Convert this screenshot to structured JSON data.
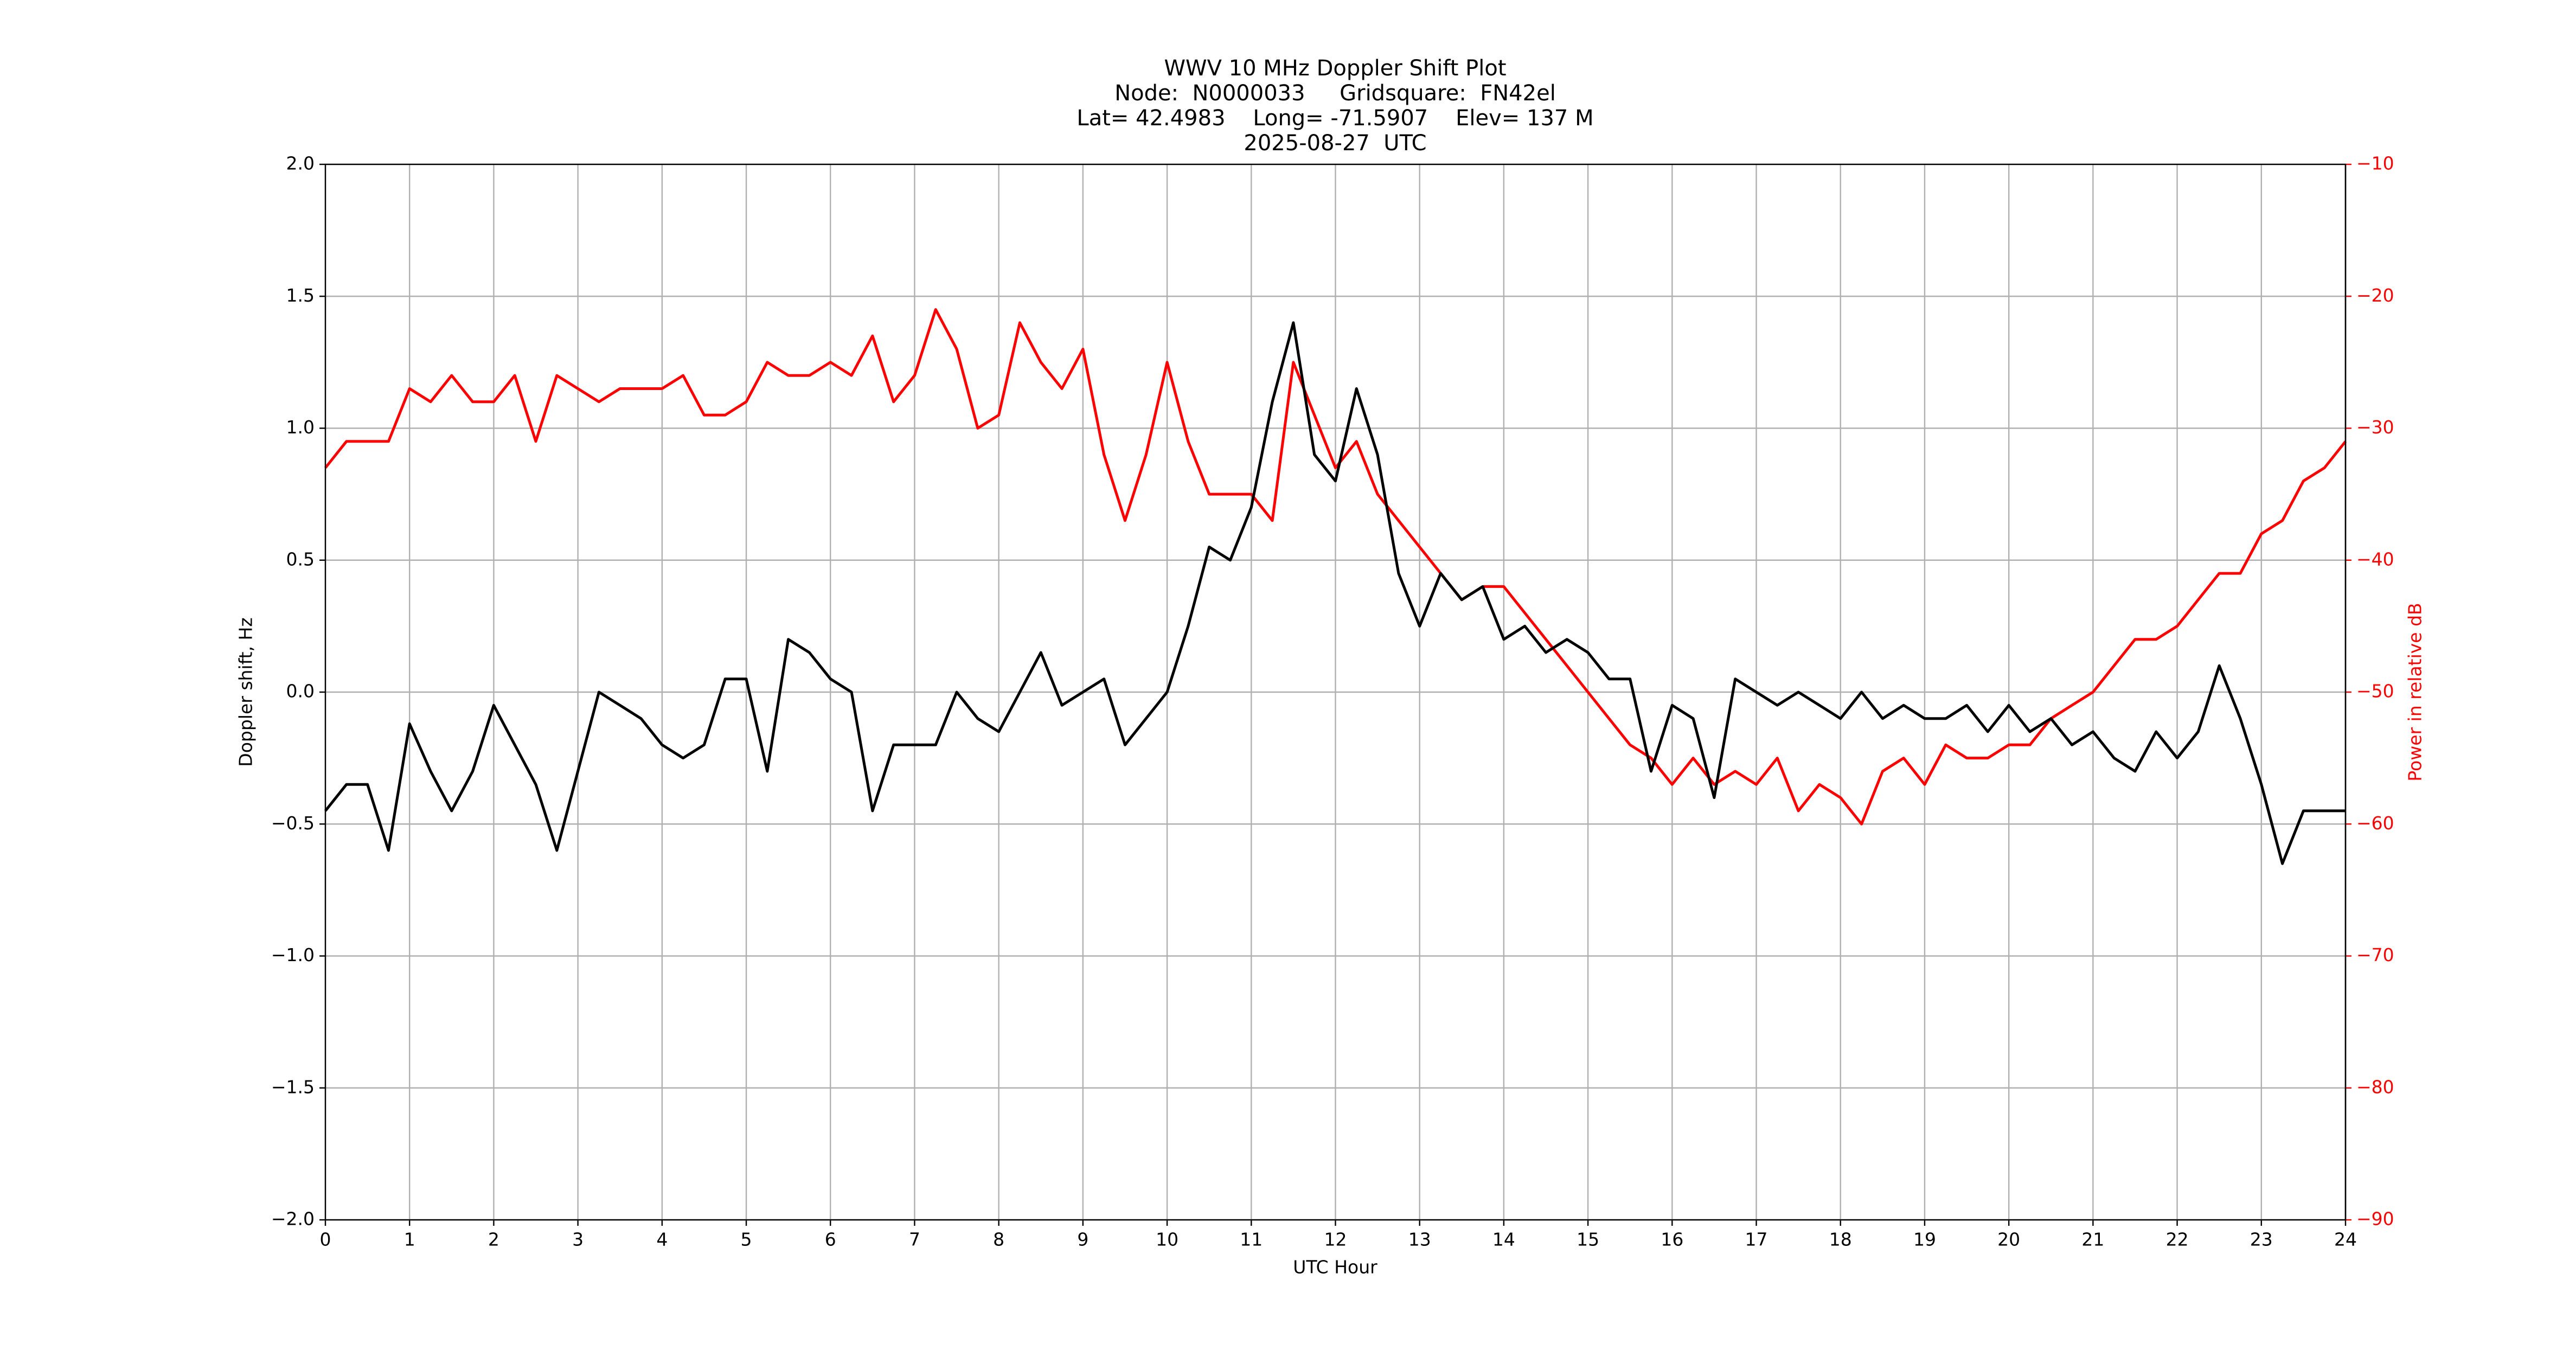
{
  "chart_data": {
    "type": "line",
    "title": "WWV 10 MHz Doppler Shift Plot",
    "subtitle": [
      "Node:  N0000033     Gridsquare:  FN42el",
      "Lat= 42.4983    Long= -71.5907    Elev= 137 M",
      "2025-08-27  UTC"
    ],
    "xlabel": "UTC Hour",
    "ylabel": "Doppler shift, Hz",
    "y2label": "Power in relative dB",
    "x": [
      0,
      0.25,
      0.5,
      0.75,
      1,
      1.25,
      1.5,
      1.75,
      2,
      2.25,
      2.5,
      2.75,
      3,
      3.25,
      3.5,
      3.75,
      4,
      4.25,
      4.5,
      4.75,
      5,
      5.25,
      5.5,
      5.75,
      6,
      6.25,
      6.5,
      6.75,
      7,
      7.25,
      7.5,
      7.75,
      8,
      8.25,
      8.5,
      8.75,
      9,
      9.25,
      9.5,
      9.75,
      10,
      10.25,
      10.5,
      10.75,
      11,
      11.25,
      11.5,
      11.75,
      12,
      12.25,
      12.5,
      12.75,
      13,
      13.25,
      13.5,
      13.75,
      14,
      14.25,
      14.5,
      14.75,
      15,
      15.25,
      15.5,
      15.75,
      16,
      16.25,
      16.5,
      16.75,
      17,
      17.25,
      17.5,
      17.75,
      18,
      18.25,
      18.5,
      18.75,
      19,
      19.25,
      19.5,
      19.75,
      20,
      20.25,
      20.5,
      20.75,
      21,
      21.25,
      21.5,
      21.75,
      22,
      22.25,
      22.5,
      22.75,
      23,
      23.25,
      23.5,
      23.75,
      24
    ],
    "series": [
      {
        "name": "Doppler shift",
        "color": "#000000",
        "axis": "y",
        "values": [
          -0.45,
          -0.35,
          -0.35,
          -0.6,
          -0.12,
          -0.3,
          -0.45,
          -0.3,
          -0.05,
          -0.2,
          -0.35,
          -0.6,
          -0.3,
          0.0,
          -0.05,
          -0.1,
          -0.2,
          -0.25,
          -0.2,
          0.05,
          0.05,
          -0.3,
          0.2,
          0.15,
          0.05,
          0.0,
          -0.45,
          -0.2,
          -0.2,
          -0.2,
          0.0,
          -0.1,
          -0.15,
          0.0,
          0.15,
          -0.05,
          0.0,
          0.05,
          -0.2,
          -0.1,
          0.0,
          0.25,
          0.55,
          0.5,
          0.7,
          1.1,
          1.4,
          0.9,
          0.8,
          1.15,
          0.9,
          0.45,
          0.25,
          0.45,
          0.35,
          0.4,
          0.2,
          0.25,
          0.15,
          0.2,
          0.15,
          0.05,
          0.05,
          -0.3,
          -0.05,
          -0.1,
          -0.4,
          0.05,
          0.0,
          -0.05,
          0.0,
          -0.05,
          -0.1,
          0.0,
          -0.1,
          -0.05,
          -0.1,
          -0.1,
          -0.05,
          -0.15,
          -0.05,
          -0.15,
          -0.1,
          -0.2,
          -0.15,
          -0.25,
          -0.3,
          -0.15,
          -0.25,
          -0.15,
          0.1,
          -0.1,
          -0.35,
          -0.65,
          -0.45,
          -0.45,
          -0.45
        ]
      },
      {
        "name": "Power",
        "color": "#ff0000",
        "axis": "y2",
        "values": [
          -33,
          -31,
          -31,
          -31,
          -27,
          -28,
          -26,
          -28,
          -28,
          -26,
          -31,
          -26,
          -27,
          -28,
          -27,
          -27,
          -27,
          -26,
          -29,
          -29,
          -28,
          -25,
          -26,
          -26,
          -25,
          -26,
          -23,
          -28,
          -26,
          -21,
          -24,
          -30,
          -29,
          -22,
          -25,
          -27,
          -24,
          -32,
          -37,
          -32,
          -25,
          -31,
          -35,
          -35,
          -35,
          -37,
          -25,
          -29,
          -33,
          -31,
          -35,
          -37,
          -39,
          -41,
          -43,
          -42,
          -42,
          -44,
          -46,
          -48,
          -50,
          -52,
          -54,
          -55,
          -57,
          -55,
          -57,
          -56,
          -57,
          -55,
          -59,
          -57,
          -58,
          -60,
          -56,
          -55,
          -57,
          -54,
          -55,
          -55,
          -54,
          -54,
          -52,
          -51,
          -50,
          -48,
          -46,
          -46,
          -45,
          -43,
          -41,
          -41,
          -38,
          -37,
          -34,
          -33,
          -31
        ]
      }
    ],
    "xlim": [
      0,
      24
    ],
    "xticks": [
      0,
      1,
      2,
      3,
      4,
      5,
      6,
      7,
      8,
      9,
      10,
      11,
      12,
      13,
      14,
      15,
      16,
      17,
      18,
      19,
      20,
      21,
      22,
      23,
      24
    ],
    "ylim": [
      -2,
      2
    ],
    "yticks": [
      {
        "value": -2,
        "label": "−2.0"
      },
      {
        "value": -1.5,
        "label": "−1.5"
      },
      {
        "value": -1,
        "label": "−1.0"
      },
      {
        "value": -0.5,
        "label": "−0.5"
      },
      {
        "value": 0,
        "label": "0.0"
      },
      {
        "value": 0.5,
        "label": "0.5"
      },
      {
        "value": 1,
        "label": "1.0"
      },
      {
        "value": 1.5,
        "label": "1.5"
      },
      {
        "value": 2,
        "label": "2.0"
      }
    ],
    "y2lim": [
      -90,
      -10
    ],
    "y2ticks": [
      {
        "value": -90,
        "label": "−90"
      },
      {
        "value": -80,
        "label": "−80"
      },
      {
        "value": -70,
        "label": "−70"
      },
      {
        "value": -60,
        "label": "−60"
      },
      {
        "value": -50,
        "label": "−50"
      },
      {
        "value": -40,
        "label": "−40"
      },
      {
        "value": -30,
        "label": "−30"
      },
      {
        "value": -20,
        "label": "−20"
      },
      {
        "value": -10,
        "label": "−10"
      }
    ],
    "y2color": "#ff0000",
    "grid": true
  }
}
